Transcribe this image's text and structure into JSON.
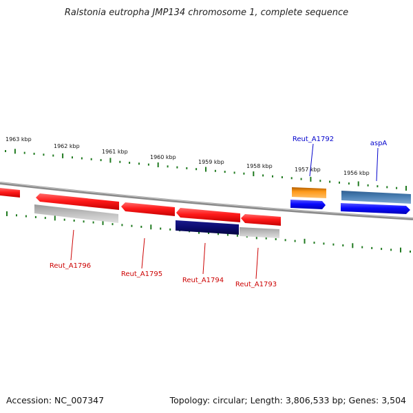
{
  "title": "Ralstonia eutropha JMP134 chromosome 1, complete sequence",
  "scale_labels": [
    "1963 kbp",
    "1962 kbp",
    "1961 kbp",
    "1960 kbp",
    "1959 kbp",
    "1958 kbp",
    "1957 kbp",
    "1956 kbp"
  ],
  "gene_labels": {
    "reut_a1796": "Reut_A1796",
    "reut_a1795": "Reut_A1795",
    "reut_a1794": "Reut_A1794",
    "reut_a1793": "Reut_A1793",
    "reut_a1792": "Reut_A1792",
    "aspa": "aspA"
  },
  "footer": {
    "accession": "Accession: NC_007347",
    "topology": "Topology: circular; Length: 3,806,533 bp; Genes: 3,504"
  },
  "colors": {
    "reverse_gene": "#ff1a1a",
    "reverse_label": "#cc0000",
    "forward_gene": "#0a0aff",
    "forward_label": "#0000cc",
    "steelblue_gene": "#4a7fb3",
    "orange_gene": "#ff9a1a",
    "navy_gene": "#0b0b6e",
    "grey_gene": "#bdbdbd",
    "backbone": "#8a8a8a",
    "tick": "#1f7a1f"
  }
}
